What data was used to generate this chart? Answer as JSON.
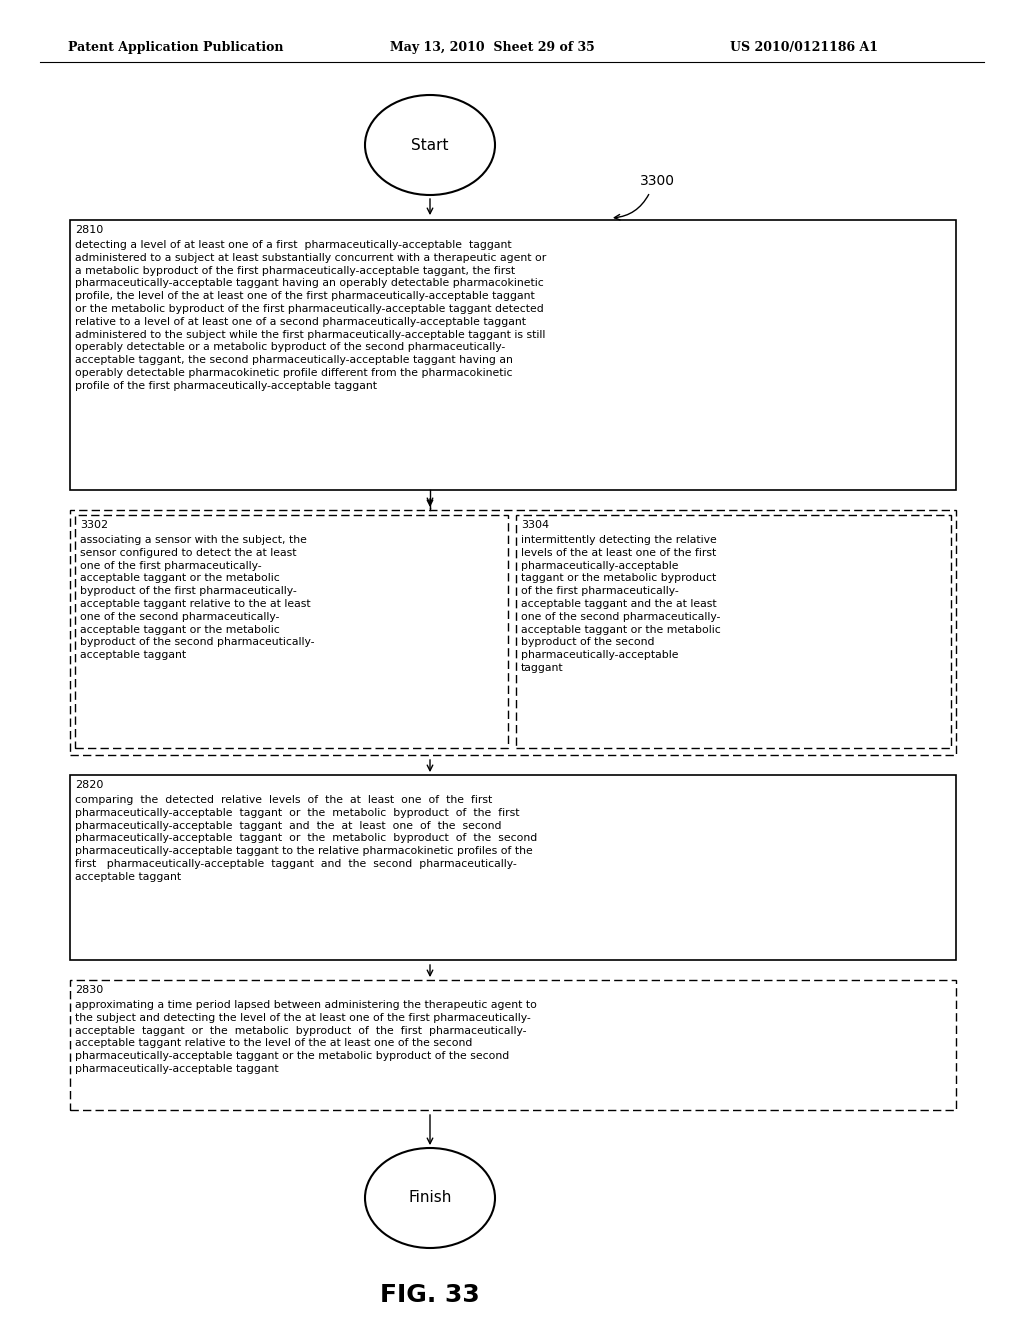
{
  "header_left": "Patent Application Publication",
  "header_mid": "May 13, 2010  Sheet 29 of 35",
  "header_right": "US 2010/0121186 A1",
  "figure_label": "FIG. 33",
  "start_label": "Start",
  "finish_label": "Finish",
  "label_3300": "3300",
  "box_2810_label": "2810",
  "box_2810_text": "detecting a level of at least one of a first  pharmaceutically-acceptable  taggant\nadministered to a subject at least substantially concurrent with a therapeutic agent or\na metabolic byproduct of the first pharmaceutically-acceptable taggant, the first\npharmaceutically-acceptable taggant having an operably detectable pharmacokinetic\nprofile, the level of the at least one of the first pharmaceutically-acceptable taggant\nor the metabolic byproduct of the first pharmaceutically-acceptable taggant detected\nrelative to a level of at least one of a second pharmaceutically-acceptable taggant\nadministered to the subject while the first pharmaceutically-acceptable taggant is still\noperably detectable or a metabolic byproduct of the second pharmaceutically-\nacceptable taggant, the second pharmaceutically-acceptable taggant having an\noperably detectable pharmacokinetic profile different from the pharmacokinetic\nprofile of the first pharmaceutically-acceptable taggant",
  "box_3302_label": "3302",
  "box_3302_text": "associating a sensor with the subject, the\nsensor configured to detect the at least\none of the first pharmaceutically-\nacceptable taggant or the metabolic\nbyproduct of the first pharmaceutically-\nacceptable taggant relative to the at least\none of the second pharmaceutically-\nacceptable taggant or the metabolic\nbyproduct of the second pharmaceutically-\nacceptable taggant",
  "box_3304_label": "3304",
  "box_3304_text": "intermittently detecting the relative\nlevels of the at least one of the first\npharmaceutically-acceptable\ntaggant or the metabolic byproduct\nof the first pharmaceutically-\nacceptable taggant and the at least\none of the second pharmaceutically-\nacceptable taggant or the metabolic\nbyproduct of the second\npharmaceutically-acceptable\ntaggant",
  "box_2820_label": "2820",
  "box_2820_text": "comparing  the  detected  relative  levels  of  the  at  least  one  of  the  first\npharmaceutically-acceptable  taggant  or  the  metabolic  byproduct  of  the  first\npharmaceutically-acceptable  taggant  and  the  at  least  one  of  the  second\npharmaceutically-acceptable  taggant  or  the  metabolic  byproduct  of  the  second\npharmaceutically-acceptable taggant to the relative pharmacokinetic profiles of the\nfirst   pharmaceutically-acceptable  taggant  and  the  second  pharmaceutically-\nacceptable taggant",
  "box_2830_label": "2830",
  "box_2830_text": "approximating a time period lapsed between administering the therapeutic agent to\nthe subject and detecting the level of the at least one of the first pharmaceutically-\nacceptable  taggant  or  the  metabolic  byproduct  of  the  first  pharmaceutically-\nacceptable taggant relative to the level of the at least one of the second\npharmaceutically-acceptable taggant or the metabolic byproduct of the second\npharmaceutically-acceptable taggant",
  "bg_color": "#ffffff",
  "text_color": "#000000"
}
